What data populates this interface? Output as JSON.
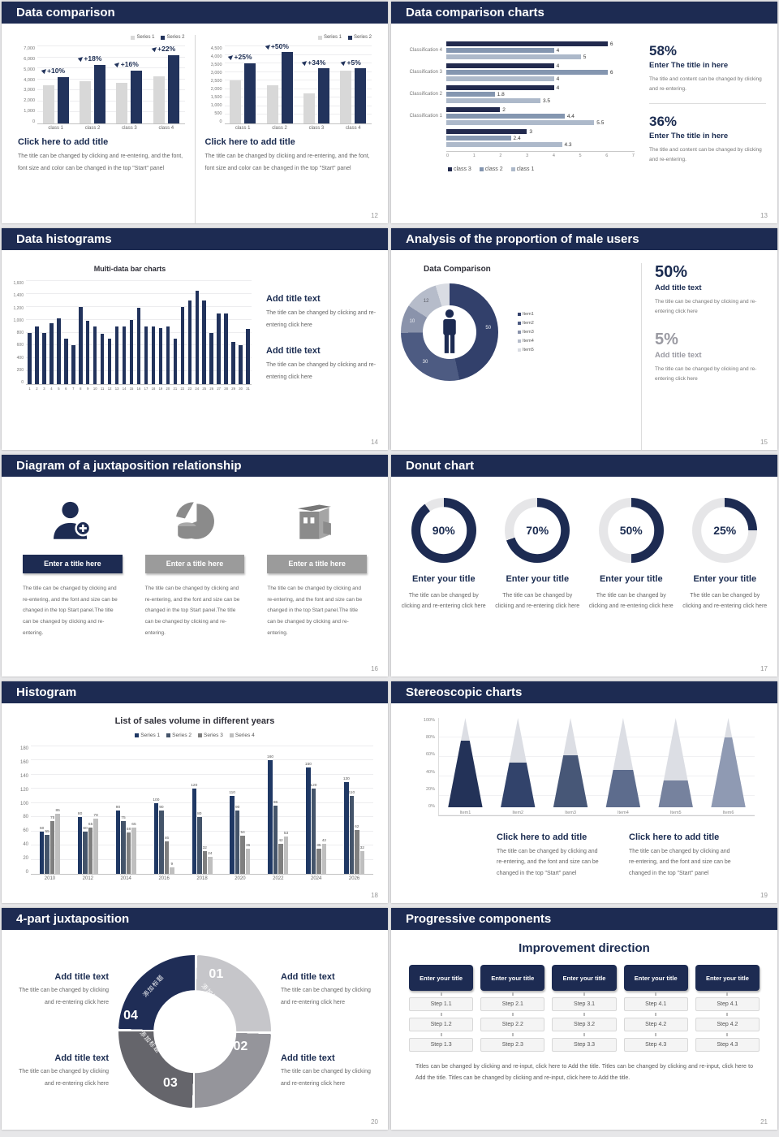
{
  "colors": {
    "navy": "#1d2b52",
    "bar_navy": "#22335c",
    "bar_gray": "#d8d8d8",
    "body_text": "#666666",
    "page_bg": "#e7e7e9"
  },
  "slides": [
    {
      "title": "Data comparison",
      "page": "12",
      "blocks": [
        {
          "heading": "Click here to add title",
          "body": "The title can be changed by clicking and re-entering, and the font, font size and color can be changed in the top \"Start\" panel"
        },
        {
          "heading": "Click here to add title",
          "body": "The title can be changed by clicking and re-entering, and the font, font size and color can be changed in the top \"Start\" panel"
        }
      ],
      "chart_data": [
        {
          "type": "bar",
          "legend": [
            "Series 1",
            "Series 2"
          ],
          "categories": [
            "class 1",
            "class 2",
            "class 3",
            "class 4"
          ],
          "series": [
            {
              "name": "Series 1",
              "values": [
                3500,
                3800,
                3700,
                4300
              ]
            },
            {
              "name": "Series 2",
              "values": [
                4200,
                5300,
                4800,
                6200
              ]
            }
          ],
          "point_labels": [
            "+10%",
            "+18%",
            "+16%",
            "+22%"
          ],
          "colors": [
            "#d8d8d8",
            "#22335c"
          ],
          "ylim": [
            0,
            7000
          ],
          "ytick_step": 1000
        },
        {
          "type": "bar",
          "legend": [
            "Series 1",
            "Series 2"
          ],
          "categories": [
            "class 1",
            "class 2",
            "class 3",
            "class 4"
          ],
          "series": [
            {
              "name": "Series 1",
              "values": [
                2500,
                2250,
                1750,
                3100
              ]
            },
            {
              "name": "Series 2",
              "values": [
                3500,
                4150,
                3200,
                3200
              ]
            }
          ],
          "point_labels": [
            "+25%",
            "+50%",
            "+34%",
            "+5%"
          ],
          "colors": [
            "#d8d8d8",
            "#22335c"
          ],
          "ylim": [
            0,
            4500
          ],
          "ytick_step": 500
        }
      ]
    },
    {
      "title": "Data comparison charts",
      "page": "13",
      "stats": [
        {
          "value": "58%",
          "heading": "Enter The title in here",
          "body": "The title and content can be changed by clicking and re-entering."
        },
        {
          "value": "36%",
          "heading": "Enter The title in here",
          "body": "The title and content can be changed by clicking and re-entering."
        }
      ],
      "chart_data": {
        "type": "bar",
        "orientation": "horizontal",
        "categories": [
          "Classification 4",
          "Classification 3",
          "Classification 2",
          "Classification 1",
          ""
        ],
        "series": [
          {
            "name": "class 3",
            "values": [
              6,
              4,
              4,
              2,
              3
            ]
          },
          {
            "name": "class 2",
            "values": [
              4,
              6,
              1.8,
              4.4,
              2.4
            ]
          },
          {
            "name": "class 1",
            "values": [
              5,
              4,
              3.5,
              5.5,
              4.3
            ]
          }
        ],
        "legend": [
          "class 3",
          "class 2",
          "class 1"
        ],
        "colors": [
          "#222a4e",
          "#8496b0",
          "#adb9ca"
        ],
        "xlim": [
          0,
          7
        ]
      }
    },
    {
      "title": "Data histograms",
      "page": "14",
      "blocks": [
        {
          "heading": "Add title text",
          "body": "The title can be changed by clicking and re-entering click here"
        },
        {
          "heading": "Add title text",
          "body": "The title can be changed by clicking and re-entering click here"
        }
      ],
      "chart_data": {
        "type": "bar",
        "title": "Multi-data bar charts",
        "categories": [
          "1",
          "2",
          "3",
          "4",
          "5",
          "6",
          "7",
          "8",
          "9",
          "10",
          "11",
          "12",
          "13",
          "14",
          "15",
          "16",
          "17",
          "18",
          "19",
          "20",
          "21",
          "22",
          "23",
          "24",
          "25",
          "26",
          "27",
          "28",
          "29",
          "30",
          "31"
        ],
        "values": [
          800,
          900,
          800,
          950,
          1020,
          700,
          600,
          1200,
          980,
          890,
          780,
          700,
          890,
          890,
          1000,
          1190,
          900,
          890,
          870,
          890,
          700,
          1200,
          1300,
          1450,
          1300,
          800,
          1090,
          1100,
          650,
          600,
          860
        ],
        "colors": [
          "#22335c"
        ],
        "ylim": [
          0,
          1600
        ],
        "ytick_step": 200
      }
    },
    {
      "title": "Analysis of the proportion of male users",
      "page": "15",
      "stats": [
        {
          "value": "50%",
          "heading": "Add title text",
          "body": "The title can be changed by clicking and re-entering click here"
        },
        {
          "value": "5%",
          "heading": "Add title text",
          "body": "The title can be changed by clicking and re-entering click here"
        }
      ],
      "chart_data": {
        "type": "pie",
        "title": "Data Comparison",
        "labels": [
          "Item1",
          "Item2",
          "Item3",
          "Item4",
          "Item5"
        ],
        "values": [
          50,
          30,
          10,
          12,
          5
        ],
        "shown_labels": [
          "50",
          "30",
          "10",
          "12",
          ""
        ],
        "colors": [
          "#32406b",
          "#4d5b82",
          "#8a93ab",
          "#b6bcca",
          "#d9dce3"
        ]
      }
    },
    {
      "title": "Diagram of a juxtaposition relationship",
      "page": "16",
      "columns": [
        {
          "icon": "person-add-icon",
          "bar_label": "Enter a title here",
          "bar_style": "navy",
          "body": "The title can be changed by clicking and re-entering, and the font and size can be changed in the top Start panel.The title can be changed by clicking and re-entering."
        },
        {
          "icon": "pie-chart-icon",
          "bar_label": "Enter a title here",
          "bar_style": "gray",
          "body": "The title can be changed by clicking and re-entering, and the font and size can be changed in the top Start panel.The title can be changed by clicking and re-entering."
        },
        {
          "icon": "building-icon",
          "bar_label": "Enter a title here",
          "bar_style": "gray",
          "body": "The title can be changed by clicking and re-entering, and the font and size can be changed in the top Start panel.The title can be changed by clicking and re-entering."
        }
      ]
    },
    {
      "title": "Donut chart",
      "page": "17",
      "donuts": [
        {
          "percent": 90,
          "label": "90%",
          "heading": "Enter your title",
          "body": "The title can be changed by clicking and re-entering click here"
        },
        {
          "percent": 70,
          "label": "70%",
          "heading": "Enter your title",
          "body": "The title can be changed by clicking and re-entering click here"
        },
        {
          "percent": 50,
          "label": "50%",
          "heading": "Enter your title",
          "body": "The title can be changed by clicking and re-entering click here"
        },
        {
          "percent": 25,
          "label": "25%",
          "heading": "Enter your title",
          "body": "The title can be changed by clicking and re-entering click here"
        }
      ]
    },
    {
      "title": "Histogram",
      "page": "18",
      "chart_data": {
        "type": "bar",
        "title": "List of sales volume in different years",
        "legend": [
          "Series 1",
          "Series 2",
          "Series 3",
          "Series 4"
        ],
        "categories": [
          "2010",
          "2012",
          "2014",
          "2016",
          "2018",
          "2020",
          "2022",
          "2024",
          "2026"
        ],
        "series": [
          {
            "name": "Series 1",
            "values": [
              60,
              80,
              90,
              100,
              120,
              110,
              160,
              150,
              130
            ]
          },
          {
            "name": "Series 2",
            "values": [
              55,
              60,
              75,
              90,
              80,
              90,
              96,
              120,
              110
            ]
          },
          {
            "name": "Series 3",
            "values": [
              75,
              65,
              58,
              46,
              32,
              54,
              42,
              35,
              62
            ]
          },
          {
            "name": "Series 4",
            "values": [
              85,
              78,
              65,
              9,
              24,
              36,
              53,
              42,
              32
            ]
          }
        ],
        "colors": [
          "#1f3864",
          "#44546a",
          "#7f7f7f",
          "#bfbfbf"
        ],
        "ylim": [
          0,
          180
        ],
        "ytick_step": 20,
        "show_value_labels": true
      }
    },
    {
      "title": "Stereoscopic charts",
      "page": "19",
      "blocks": [
        {
          "heading": "Click here to add title",
          "body": "The title can be changed by clicking and re-entering, and the font and size can be changed in the top \"Start\" panel"
        },
        {
          "heading": "Click here to add title",
          "body": "The title can be changed by clicking and re-entering, and the font and size can be changed in the top \"Start\" panel"
        }
      ],
      "chart_data": {
        "type": "bar",
        "subtype": "cone",
        "categories": [
          "Item1",
          "Item2",
          "Item3",
          "Item4",
          "Item5",
          "Item6"
        ],
        "values": [
          75,
          50,
          58,
          42,
          30,
          78
        ],
        "yticks": [
          "100%",
          "80%",
          "60%",
          "40%",
          "20%",
          "0%"
        ],
        "colors": [
          "#233258",
          "#32436b",
          "#475777",
          "#5d6c8d",
          "#76829e",
          "#8f9ab3"
        ],
        "ylim": [
          0,
          100
        ]
      }
    },
    {
      "title": "4-part juxtaposition",
      "page": "20",
      "segments": [
        {
          "number": "01",
          "label": "添加标题",
          "color": "#c6c6ca"
        },
        {
          "number": "02",
          "label": "添加标题",
          "color": "#95959b"
        },
        {
          "number": "03",
          "label": "添加标题",
          "color": "#65656b"
        },
        {
          "number": "04",
          "label": "添加标题",
          "color": "#1f2d56"
        }
      ],
      "blocks": [
        {
          "heading": "Add title text",
          "body": "The title can be changed by clicking and re-entering click here"
        },
        {
          "heading": "Add title text",
          "body": "The title can be changed by clicking and re-entering click here"
        },
        {
          "heading": "Add title text",
          "body": "The title can be changed by clicking and re-entering click here"
        },
        {
          "heading": "Add title text",
          "body": "The title can be changed by clicking and re-entering click here"
        }
      ]
    },
    {
      "title": "Progressive components",
      "page": "21",
      "heading": "Improvement direction",
      "columns": [
        {
          "header": "Enter your title",
          "steps": [
            "Step 1.1",
            "Step 1.2",
            "Step 1.3"
          ]
        },
        {
          "header": "Enter your title",
          "steps": [
            "Step 2.1",
            "Step 2.2",
            "Step 2.3"
          ]
        },
        {
          "header": "Enter your title",
          "steps": [
            "Step 3.1",
            "Step 3.2",
            "Step 3.3"
          ]
        },
        {
          "header": "Enter your title",
          "steps": [
            "Step 4.1",
            "Step 4.2",
            "Step 4.3"
          ]
        },
        {
          "header": "Enter your title",
          "steps": [
            "Step 4.1",
            "Step 4.2",
            "Step 4.3"
          ]
        }
      ],
      "footer": "Titles can be changed by clicking and re-input, click here to Add the title. Titles can be changed by clicking and re-input, click here to Add the title. Titles can be changed by clicking and re-input, click here to Add the title."
    }
  ]
}
